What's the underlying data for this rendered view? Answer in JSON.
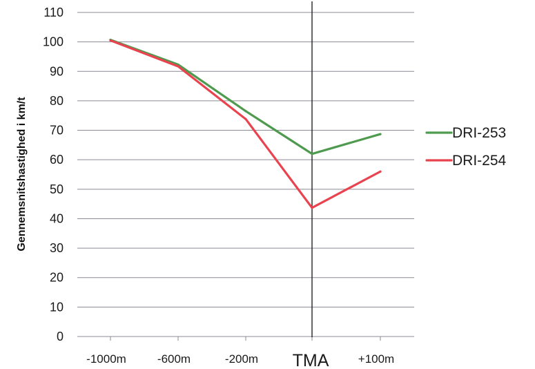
{
  "chart_data": {
    "type": "line",
    "title": "",
    "xlabel": "",
    "ylabel": "Gennemsnitshastighed i km/t",
    "categories": [
      "-1000m",
      "-600m",
      "-200m",
      "TMA",
      "+100m"
    ],
    "emphasized_category": "TMA",
    "ylim": [
      0,
      110
    ],
    "yticks": [
      0,
      10,
      20,
      30,
      40,
      50,
      60,
      70,
      80,
      90,
      100,
      110
    ],
    "grid": true,
    "legend_position": "right",
    "reference_line_at": "TMA",
    "series": [
      {
        "name": "DRI-253",
        "color": "#4e9a4e",
        "values": [
          100.7,
          92.3,
          76.5,
          62.0,
          68.7
        ]
      },
      {
        "name": "DRI-254",
        "color": "#e8434e",
        "values": [
          100.5,
          91.7,
          73.8,
          43.7,
          56.0
        ]
      }
    ]
  }
}
